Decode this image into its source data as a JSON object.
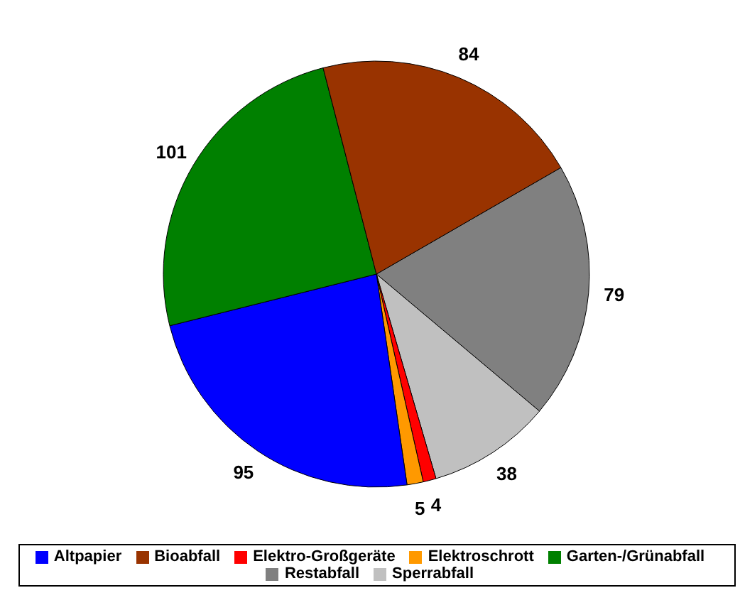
{
  "chart_data": {
    "type": "pie",
    "categories": [
      "Restabfall",
      "Sperrabfall",
      "Elektro-Großgeräte",
      "Elektroschrott",
      "Altpapier",
      "Garten-/Grünabfall",
      "Bioabfall"
    ],
    "values": [
      79,
      38,
      4,
      5,
      95,
      101,
      84
    ],
    "colors": [
      "#808080",
      "#c0c0c0",
      "#ff0000",
      "#ff9900",
      "#0000ff",
      "#008000",
      "#993300"
    ],
    "data_labels": true,
    "legend": "bottom"
  }
}
